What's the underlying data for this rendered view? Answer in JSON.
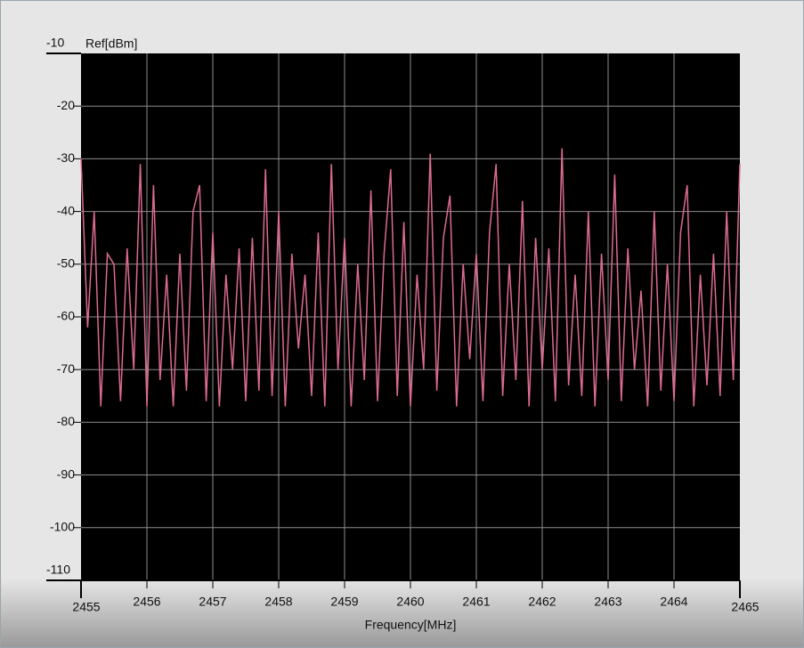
{
  "chart_data": {
    "type": "line",
    "ylabel": "Ref[dBm]",
    "xlabel": "Frequency[MHz]",
    "xlim": [
      2455,
      2465
    ],
    "xticks": [
      2455,
      2456,
      2457,
      2458,
      2459,
      2460,
      2461,
      2462,
      2463,
      2464,
      2465
    ],
    "ylim": [
      -110,
      -10
    ],
    "yticks": [
      -110,
      -100,
      -90,
      -80,
      -70,
      -60,
      -50,
      -40,
      -30,
      -20,
      -10
    ],
    "grid": true,
    "background": "#000000",
    "grid_color": "#8c8c8c",
    "x": [
      2455,
      2455.1,
      2455.2,
      2455.3,
      2455.4,
      2455.5,
      2455.6,
      2455.7,
      2455.8,
      2455.9,
      2456,
      2456.1,
      2456.2,
      2456.3,
      2456.4,
      2456.5,
      2456.6,
      2456.7,
      2456.8,
      2456.9,
      2457,
      2457.1,
      2457.2,
      2457.3,
      2457.4,
      2457.5,
      2457.6,
      2457.7,
      2457.8,
      2457.9,
      2458,
      2458.1,
      2458.2,
      2458.3,
      2458.4,
      2458.5,
      2458.6,
      2458.7,
      2458.8,
      2458.9,
      2459,
      2459.1,
      2459.2,
      2459.3,
      2459.4,
      2459.5,
      2459.6,
      2459.7,
      2459.8,
      2459.9,
      2460,
      2460.1,
      2460.2,
      2460.3,
      2460.4,
      2460.5,
      2460.6,
      2460.7,
      2460.8,
      2460.9,
      2461,
      2461.1,
      2461.2,
      2461.3,
      2461.4,
      2461.5,
      2461.6,
      2461.7,
      2461.8,
      2461.9,
      2462,
      2462.1,
      2462.2,
      2462.3,
      2462.4,
      2462.5,
      2462.6,
      2462.7,
      2462.8,
      2462.9,
      2463,
      2463.1,
      2463.2,
      2463.3,
      2463.4,
      2463.5,
      2463.6,
      2463.7,
      2463.8,
      2463.9,
      2464,
      2464.1,
      2464.2,
      2464.3,
      2464.4,
      2464.5,
      2464.6,
      2464.7,
      2464.8,
      2464.9,
      2465
    ],
    "series": [
      {
        "color": "#dc6a94",
        "values": [
          -30,
          -62,
          -40,
          -77,
          -48,
          -50,
          -76,
          -47,
          -70,
          -31,
          -77,
          -35,
          -72,
          -52,
          -77,
          -48,
          -74,
          -40,
          -35,
          -76,
          -44,
          -77,
          -52,
          -70,
          -47,
          -76,
          -45,
          -74,
          -32,
          -75,
          -40,
          -77,
          -48,
          -66,
          -52,
          -75,
          -44,
          -77,
          -31,
          -70,
          -45,
          -77,
          -50,
          -72,
          -36,
          -76,
          -48,
          -32,
          -75,
          -42,
          -77,
          -52,
          -70,
          -29,
          -74,
          -45,
          -37,
          -77,
          -50,
          -68,
          -48,
          -76,
          -44,
          -31,
          -75,
          -50,
          -72,
          -38,
          -77,
          -45,
          -70,
          -47,
          -76,
          -28,
          -73,
          -52,
          -75,
          -40,
          -77,
          -48,
          -72,
          -33,
          -76,
          -47,
          -70,
          -55,
          -77,
          -40,
          -74,
          -50,
          -76,
          -44,
          -35,
          -77,
          -52,
          -73,
          -48,
          -75,
          -40,
          -72,
          -31
        ]
      }
    ]
  }
}
